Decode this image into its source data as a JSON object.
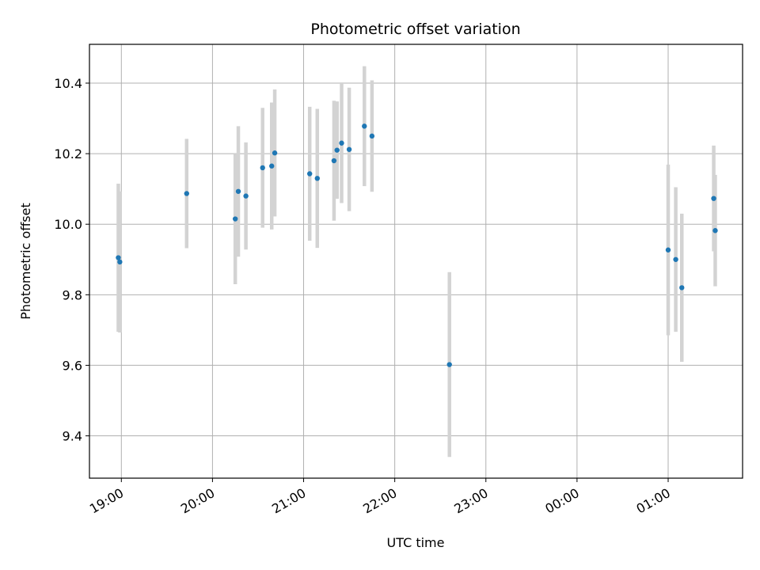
{
  "chart_data": {
    "type": "scatter",
    "title": "Photometric offset variation",
    "xlabel": "UTC time",
    "ylabel": "Photometric offset",
    "x_unit": "UTC time (HH:MM)",
    "xlim": [
      "18:39",
      "01:49"
    ],
    "ylim": [
      9.28,
      10.51
    ],
    "grid": true,
    "x_ticks": [
      "19:00",
      "20:00",
      "21:00",
      "22:00",
      "23:00",
      "00:00",
      "01:00"
    ],
    "y_ticks": [
      9.4,
      9.6,
      9.8,
      10.0,
      10.2,
      10.4
    ],
    "marker_color": "#1f77b4",
    "errorbar_color": "#d3d3d3",
    "points": [
      {
        "t": "18:58",
        "y": 9.905,
        "err": 0.21
      },
      {
        "t": "18:59",
        "y": 9.893,
        "err": 0.2
      },
      {
        "t": "19:43",
        "y": 10.087,
        "err": 0.155
      },
      {
        "t": "20:15",
        "y": 10.015,
        "err": 0.185
      },
      {
        "t": "20:17",
        "y": 10.093,
        "err": 0.185
      },
      {
        "t": "20:22",
        "y": 10.08,
        "err": 0.152
      },
      {
        "t": "20:33",
        "y": 10.16,
        "err": 0.17
      },
      {
        "t": "20:39",
        "y": 10.165,
        "err": 0.18
      },
      {
        "t": "20:41",
        "y": 10.202,
        "err": 0.18
      },
      {
        "t": "21:04",
        "y": 10.143,
        "err": 0.19
      },
      {
        "t": "21:09",
        "y": 10.13,
        "err": 0.197
      },
      {
        "t": "21:20",
        "y": 10.18,
        "err": 0.17
      },
      {
        "t": "21:22",
        "y": 10.21,
        "err": 0.138
      },
      {
        "t": "21:25",
        "y": 10.23,
        "err": 0.17
      },
      {
        "t": "21:30",
        "y": 10.212,
        "err": 0.175
      },
      {
        "t": "21:40",
        "y": 10.278,
        "err": 0.17
      },
      {
        "t": "21:45",
        "y": 10.25,
        "err": 0.158
      },
      {
        "t": "22:36",
        "y": 9.602,
        "err": 0.262
      },
      {
        "t": "01:00",
        "y": 9.927,
        "err": 0.242
      },
      {
        "t": "01:05",
        "y": 9.9,
        "err": 0.205
      },
      {
        "t": "01:09",
        "y": 9.82,
        "err": 0.21
      },
      {
        "t": "01:30",
        "y": 10.073,
        "err": 0.15
      },
      {
        "t": "01:31",
        "y": 9.982,
        "err": 0.158
      }
    ]
  }
}
